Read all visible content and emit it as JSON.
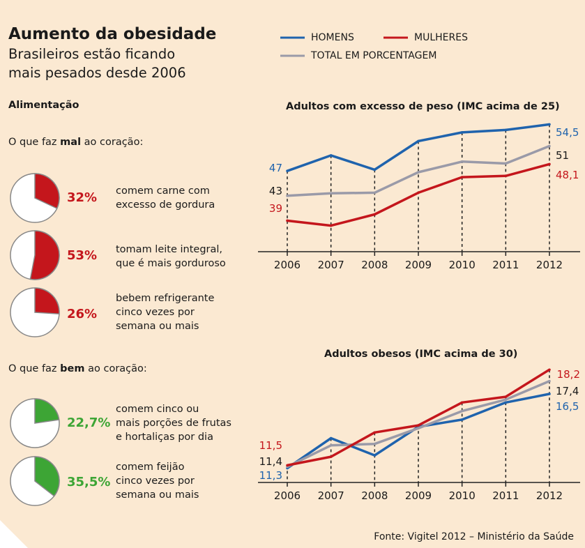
{
  "header": {
    "title": "Aumento da obesidade",
    "subtitle_line1": "Brasileiros estão ficando",
    "subtitle_line2": "mais pesados desde 2006"
  },
  "section_title": "Alimentação",
  "bad": {
    "label_prefix": "O que faz ",
    "label_bold": "mal",
    "label_suffix": " ao coração:",
    "items": [
      {
        "value": 32,
        "pct": "32%",
        "line1": "comem carne com",
        "line2": "excesso de gordura",
        "line3": ""
      },
      {
        "value": 53,
        "pct": "53%",
        "line1": "tomam leite integral,",
        "line2": "que é mais gorduroso",
        "line3": ""
      },
      {
        "value": 26,
        "pct": "26%",
        "line1": "bebem refrigerante",
        "line2": "cinco vezes por",
        "line3": "semana ou mais"
      }
    ]
  },
  "good": {
    "label_prefix": "O que faz ",
    "label_bold": "bem",
    "label_suffix": " ao coração:",
    "items": [
      {
        "value": 22.7,
        "pct": "22,7%",
        "line1": "comem cinco ou",
        "line2": "mais porções de frutas",
        "line3": "e hortaliças por dia"
      },
      {
        "value": 35.5,
        "pct": "35,5%",
        "line1": "comem feijão",
        "line2": "cinco vezes por",
        "line3": "semana ou mais"
      }
    ]
  },
  "legend": {
    "men": "HOMENS",
    "women": "MULHERES",
    "total": "TOTAL EM PORCENTAGEM"
  },
  "colors": {
    "men": "#1f63ad",
    "women": "#c4161c",
    "total": "#9a9aa8",
    "bad_pie": "#c4161c",
    "good_pie": "#3da535"
  },
  "source": "Fonte: Vigitel 2012 – Ministério da Saúde",
  "chart_data": [
    {
      "type": "line",
      "title": "Adultos com excesso de peso (IMC acima de 25)",
      "x": [
        "2006",
        "2007",
        "2008",
        "2009",
        "2010",
        "2011",
        "2012"
      ],
      "series": [
        {
          "name": "HOMENS",
          "values": [
            47,
            49.5,
            47.2,
            51.8,
            53.2,
            53.6,
            54.5
          ]
        },
        {
          "name": "TOTAL EM PORCENTAGEM",
          "values": [
            43,
            43.4,
            43.5,
            46.8,
            48.5,
            48.2,
            51
          ]
        },
        {
          "name": "MULHERES",
          "values": [
            39,
            38.2,
            40,
            43.5,
            46,
            46.2,
            48.1
          ]
        }
      ],
      "labels": {
        "HOMENS": {
          "first": "47",
          "last": "54,5"
        },
        "TOTAL EM PORCENTAGEM": {
          "first": "43",
          "last": "51"
        },
        "MULHERES": {
          "first": "39",
          "last": "48,1"
        }
      },
      "ylim": [
        34,
        56
      ]
    },
    {
      "type": "line",
      "title": "Adultos obesos (IMC acima de 30)",
      "x": [
        "2006",
        "2007",
        "2008",
        "2009",
        "2010",
        "2011",
        "2012"
      ],
      "series": [
        {
          "name": "HOMENS",
          "values": [
            11.3,
            13.4,
            12.2,
            14.2,
            14.7,
            15.9,
            16.5
          ]
        },
        {
          "name": "TOTAL EM PORCENTAGEM",
          "values": [
            11.4,
            12.9,
            13.0,
            14.1,
            15.3,
            16.1,
            17.4
          ]
        },
        {
          "name": "MULHERES",
          "values": [
            11.5,
            12.1,
            13.8,
            14.3,
            15.9,
            16.3,
            18.2
          ]
        }
      ],
      "labels": {
        "HOMENS": {
          "first": "11,3",
          "last": "16,5"
        },
        "TOTAL EM PORCENTAGEM": {
          "first": "11,4",
          "last": "17,4"
        },
        "MULHERES": {
          "first": "11,5",
          "last": "18,2"
        }
      },
      "ylim": [
        10.3,
        18.7
      ]
    }
  ]
}
